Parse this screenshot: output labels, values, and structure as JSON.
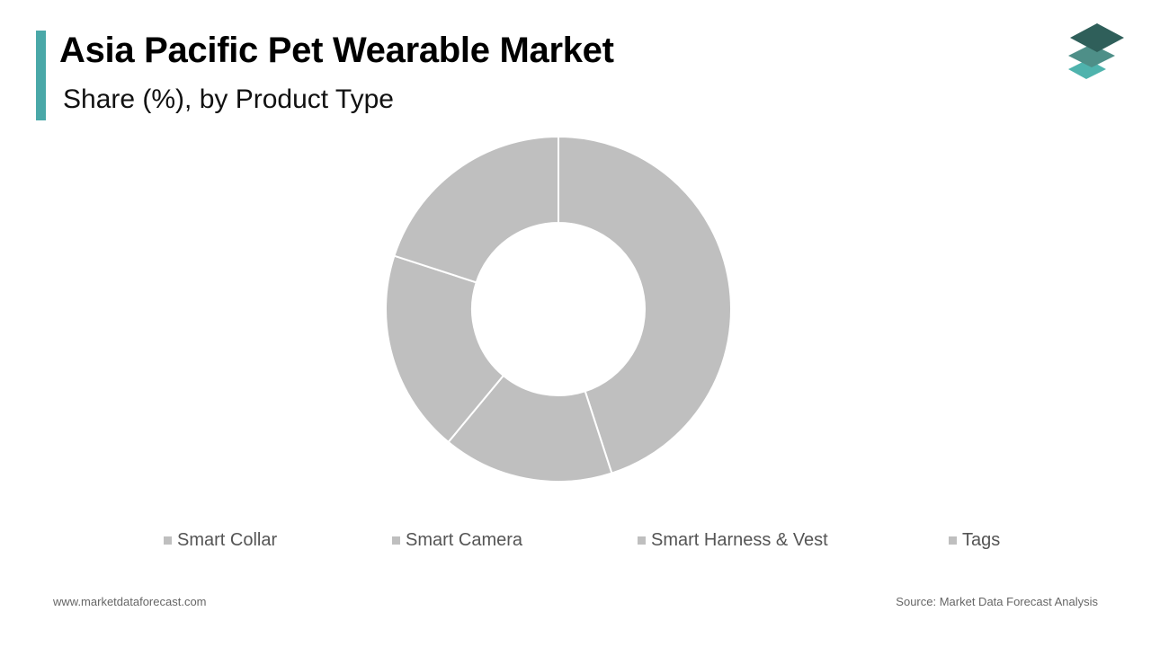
{
  "header": {
    "title": "Asia Pacific Pet Wearable Market",
    "subtitle": "Share (%), by Product Type",
    "accent_color": "#4aa8a8"
  },
  "logo": {
    "icon": "stacked-layers-logo",
    "colors": [
      "#2f5f5a",
      "#4e8f88",
      "#4fb3ad"
    ]
  },
  "chart_data": {
    "type": "pie",
    "donut": true,
    "categories": [
      "Smart Collar",
      "Smart Camera",
      "Smart Harness & Vest",
      "Tags"
    ],
    "values": [
      45,
      16,
      19,
      20
    ],
    "colors": [
      "#bfbfbf",
      "#bfbfbf",
      "#bfbfbf",
      "#bfbfbf"
    ],
    "title": "Asia Pacific Pet Wearable Market",
    "subtitle": "Share (%), by Product Type",
    "legend_position": "bottom"
  },
  "footer": {
    "website": "www.marketdataforecast.com",
    "source": "Source: Market Data Forecast Analysis"
  }
}
